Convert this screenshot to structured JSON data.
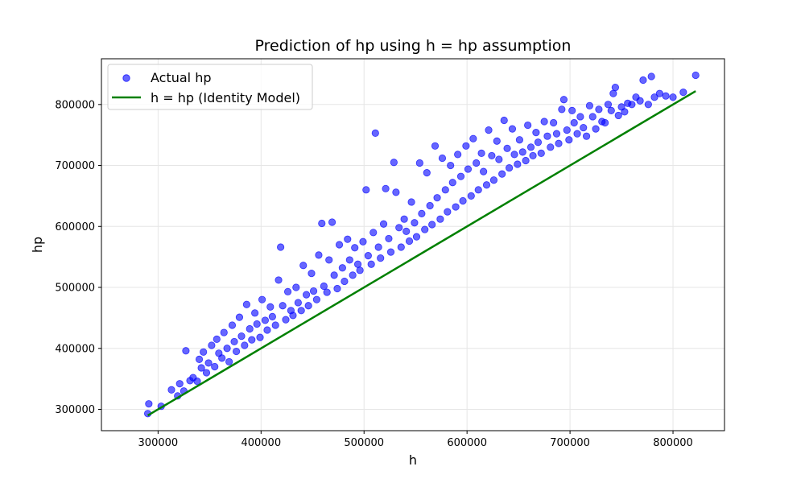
{
  "chart_data": {
    "type": "scatter",
    "title": "Prediction of hp using h = hp assumption",
    "xlabel": "h",
    "ylabel": "hp",
    "xlim": [
      245000,
      850000
    ],
    "ylim": [
      265000,
      875000
    ],
    "xticks": [
      300000,
      400000,
      500000,
      600000,
      700000,
      800000
    ],
    "yticks": [
      300000,
      400000,
      500000,
      600000,
      700000,
      800000
    ],
    "grid": true,
    "legend_position": "top-left",
    "series": [
      {
        "name": "Actual hp",
        "kind": "scatter",
        "color": "#0000ff",
        "points": [
          [
            290000,
            293000
          ],
          [
            291000,
            309000
          ],
          [
            303000,
            305000
          ],
          [
            313000,
            332000
          ],
          [
            319000,
            322000
          ],
          [
            321000,
            342000
          ],
          [
            325000,
            330000
          ],
          [
            327000,
            396000
          ],
          [
            331000,
            347000
          ],
          [
            334000,
            352000
          ],
          [
            338000,
            346000
          ],
          [
            340000,
            382000
          ],
          [
            342000,
            368000
          ],
          [
            344000,
            394000
          ],
          [
            347000,
            360000
          ],
          [
            349000,
            376000
          ],
          [
            352000,
            405000
          ],
          [
            355000,
            370000
          ],
          [
            357000,
            415000
          ],
          [
            359000,
            392000
          ],
          [
            362000,
            384000
          ],
          [
            364000,
            426000
          ],
          [
            367000,
            400000
          ],
          [
            369000,
            378000
          ],
          [
            372000,
            438000
          ],
          [
            374000,
            411000
          ],
          [
            376000,
            395000
          ],
          [
            379000,
            451000
          ],
          [
            381000,
            420000
          ],
          [
            384000,
            405000
          ],
          [
            386000,
            472000
          ],
          [
            389000,
            432000
          ],
          [
            391000,
            414000
          ],
          [
            394000,
            458000
          ],
          [
            396000,
            440000
          ],
          [
            399000,
            418000
          ],
          [
            401000,
            480000
          ],
          [
            404000,
            446000
          ],
          [
            406000,
            430000
          ],
          [
            409000,
            468000
          ],
          [
            411000,
            452000
          ],
          [
            414000,
            438000
          ],
          [
            417000,
            512000
          ],
          [
            419000,
            566000
          ],
          [
            421000,
            470000
          ],
          [
            424000,
            447000
          ],
          [
            426000,
            493000
          ],
          [
            429000,
            462000
          ],
          [
            431000,
            454000
          ],
          [
            434000,
            500000
          ],
          [
            436000,
            475000
          ],
          [
            439000,
            462000
          ],
          [
            441000,
            536000
          ],
          [
            444000,
            488000
          ],
          [
            446000,
            470000
          ],
          [
            449000,
            523000
          ],
          [
            451000,
            494000
          ],
          [
            454000,
            480000
          ],
          [
            456000,
            553000
          ],
          [
            459000,
            605000
          ],
          [
            461000,
            502000
          ],
          [
            464000,
            492000
          ],
          [
            466000,
            545000
          ],
          [
            469000,
            607000
          ],
          [
            471000,
            520000
          ],
          [
            474000,
            498000
          ],
          [
            476000,
            570000
          ],
          [
            479000,
            532000
          ],
          [
            481000,
            510000
          ],
          [
            484000,
            579000
          ],
          [
            486000,
            545000
          ],
          [
            489000,
            520000
          ],
          [
            491000,
            565000
          ],
          [
            494000,
            538000
          ],
          [
            496000,
            528000
          ],
          [
            499000,
            575000
          ],
          [
            502000,
            660000
          ],
          [
            504000,
            552000
          ],
          [
            507000,
            538000
          ],
          [
            509000,
            590000
          ],
          [
            511000,
            753000
          ],
          [
            514000,
            566000
          ],
          [
            516000,
            548000
          ],
          [
            519000,
            604000
          ],
          [
            521000,
            662000
          ],
          [
            524000,
            580000
          ],
          [
            526000,
            558000
          ],
          [
            529000,
            705000
          ],
          [
            531000,
            656000
          ],
          [
            534000,
            598000
          ],
          [
            536000,
            566000
          ],
          [
            539000,
            612000
          ],
          [
            541000,
            592000
          ],
          [
            544000,
            576000
          ],
          [
            546000,
            640000
          ],
          [
            549000,
            606000
          ],
          [
            551000,
            583000
          ],
          [
            554000,
            704000
          ],
          [
            556000,
            621000
          ],
          [
            559000,
            595000
          ],
          [
            561000,
            688000
          ],
          [
            564000,
            634000
          ],
          [
            566000,
            603000
          ],
          [
            569000,
            732000
          ],
          [
            571000,
            647000
          ],
          [
            574000,
            612000
          ],
          [
            576000,
            712000
          ],
          [
            579000,
            660000
          ],
          [
            581000,
            624000
          ],
          [
            584000,
            700000
          ],
          [
            586000,
            672000
          ],
          [
            589000,
            632000
          ],
          [
            591000,
            718000
          ],
          [
            594000,
            682000
          ],
          [
            596000,
            642000
          ],
          [
            599000,
            732000
          ],
          [
            601000,
            694000
          ],
          [
            604000,
            650000
          ],
          [
            606000,
            744000
          ],
          [
            609000,
            704000
          ],
          [
            611000,
            660000
          ],
          [
            614000,
            720000
          ],
          [
            616000,
            690000
          ],
          [
            619000,
            668000
          ],
          [
            621000,
            758000
          ],
          [
            624000,
            716000
          ],
          [
            626000,
            676000
          ],
          [
            629000,
            740000
          ],
          [
            631000,
            710000
          ],
          [
            634000,
            686000
          ],
          [
            636000,
            774000
          ],
          [
            639000,
            728000
          ],
          [
            641000,
            696000
          ],
          [
            644000,
            760000
          ],
          [
            646000,
            718000
          ],
          [
            649000,
            702000
          ],
          [
            651000,
            742000
          ],
          [
            654000,
            722000
          ],
          [
            657000,
            708000
          ],
          [
            659000,
            766000
          ],
          [
            662000,
            730000
          ],
          [
            664000,
            716000
          ],
          [
            667000,
            754000
          ],
          [
            669000,
            738000
          ],
          [
            672000,
            720000
          ],
          [
            675000,
            772000
          ],
          [
            678000,
            748000
          ],
          [
            681000,
            730000
          ],
          [
            684000,
            770000
          ],
          [
            687000,
            752000
          ],
          [
            689000,
            736000
          ],
          [
            692000,
            792000
          ],
          [
            694000,
            808000
          ],
          [
            697000,
            758000
          ],
          [
            699000,
            742000
          ],
          [
            702000,
            790000
          ],
          [
            704000,
            770000
          ],
          [
            707000,
            752000
          ],
          [
            710000,
            780000
          ],
          [
            713000,
            762000
          ],
          [
            716000,
            748000
          ],
          [
            719000,
            798000
          ],
          [
            722000,
            780000
          ],
          [
            725000,
            760000
          ],
          [
            728000,
            792000
          ],
          [
            731000,
            772000
          ],
          [
            734000,
            770000
          ],
          [
            737000,
            800000
          ],
          [
            740000,
            790000
          ],
          [
            742000,
            818000
          ],
          [
            744000,
            828000
          ],
          [
            747000,
            782000
          ],
          [
            750000,
            796000
          ],
          [
            753000,
            788000
          ],
          [
            756000,
            802000
          ],
          [
            760000,
            800000
          ],
          [
            764000,
            812000
          ],
          [
            768000,
            806000
          ],
          [
            771000,
            840000
          ],
          [
            776000,
            800000
          ],
          [
            779000,
            846000
          ],
          [
            782000,
            812000
          ],
          [
            787000,
            818000
          ],
          [
            793000,
            814000
          ],
          [
            800000,
            812000
          ],
          [
            810000,
            820000
          ],
          [
            822000,
            848000
          ]
        ]
      },
      {
        "name": "h = hp (Identity Model)",
        "kind": "line",
        "color": "#008000",
        "x": [
          290000,
          822000
        ],
        "y": [
          290000,
          822000
        ]
      }
    ]
  }
}
